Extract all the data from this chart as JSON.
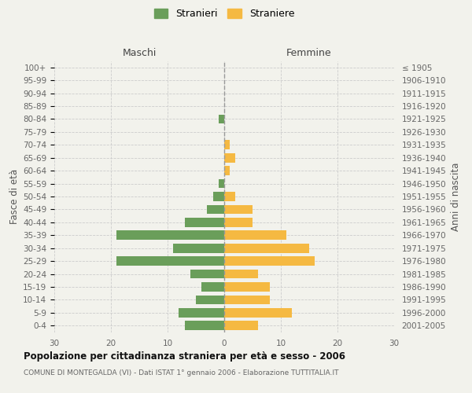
{
  "age_groups": [
    "0-4",
    "5-9",
    "10-14",
    "15-19",
    "20-24",
    "25-29",
    "30-34",
    "35-39",
    "40-44",
    "45-49",
    "50-54",
    "55-59",
    "60-64",
    "65-69",
    "70-74",
    "75-79",
    "80-84",
    "85-89",
    "90-94",
    "95-99",
    "100+"
  ],
  "birth_years": [
    "2001-2005",
    "1996-2000",
    "1991-1995",
    "1986-1990",
    "1981-1985",
    "1976-1980",
    "1971-1975",
    "1966-1970",
    "1961-1965",
    "1956-1960",
    "1951-1955",
    "1946-1950",
    "1941-1945",
    "1936-1940",
    "1931-1935",
    "1926-1930",
    "1921-1925",
    "1916-1920",
    "1911-1915",
    "1906-1910",
    "≤ 1905"
  ],
  "maschi": [
    7,
    8,
    5,
    4,
    6,
    19,
    9,
    19,
    7,
    3,
    2,
    1,
    0,
    0,
    0,
    0,
    1,
    0,
    0,
    0,
    0
  ],
  "femmine": [
    6,
    12,
    8,
    8,
    6,
    16,
    15,
    11,
    5,
    5,
    2,
    0,
    1,
    2,
    1,
    0,
    0,
    0,
    0,
    0,
    0
  ],
  "maschi_color": "#6a9e5a",
  "femmine_color": "#f5b942",
  "background_color": "#f2f2ec",
  "grid_color": "#cccccc",
  "maschi_label": "Stranieri",
  "femmine_label": "Straniere",
  "xlabel_maschi": "Maschi",
  "xlabel_femmine": "Femmine",
  "ylabel_left": "Fasce di età",
  "ylabel_right": "Anni di nascita",
  "title": "Popolazione per cittadinanza straniera per età e sesso - 2006",
  "subtitle": "COMUNE DI MONTEGALDA (VI) - Dati ISTAT 1° gennaio 2006 - Elaborazione TUTTITALIA.IT",
  "xlim": 30
}
